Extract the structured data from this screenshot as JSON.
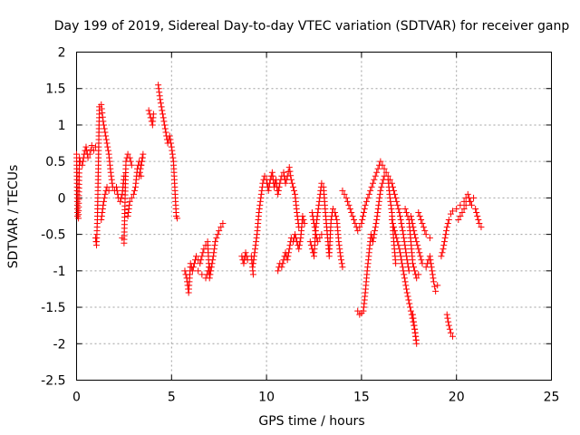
{
  "chart_data": {
    "type": "scatter",
    "title": "Day 199 of 2019, Sidereal Day-to-day VTEC variation (SDTVAR) for receiver ganp",
    "xlabel": "GPS time / hours",
    "ylabel": "SDTVAR / TECUs",
    "xlim": [
      0,
      25
    ],
    "ylim": [
      -2.5,
      2
    ],
    "x_ticks": [
      0,
      5,
      10,
      15,
      20,
      25
    ],
    "y_ticks": [
      2,
      1.5,
      1,
      0.5,
      0,
      -0.5,
      -1,
      -1.5,
      -2,
      -2.5
    ],
    "grid": true,
    "marker": "+",
    "color": "#ff0000",
    "series": [
      {
        "name": "SDTVAR",
        "segments": [
          [
            [
              0.0,
              0.6
            ],
            [
              0.05,
              -0.25
            ],
            [
              0.1,
              -0.28
            ],
            [
              0.15,
              0.55
            ],
            [
              0.2,
              0.5
            ],
            [
              0.3,
              0.45
            ],
            [
              0.4,
              0.6
            ],
            [
              0.5,
              0.7
            ],
            [
              0.6,
              0.55
            ],
            [
              0.7,
              0.6
            ],
            [
              0.8,
              0.72
            ],
            [
              0.9,
              0.65
            ],
            [
              1.0,
              0.7
            ]
          ],
          [
            [
              1.0,
              -0.55
            ],
            [
              1.05,
              -0.65
            ],
            [
              1.1,
              -0.25
            ],
            [
              1.15,
              0.5
            ],
            [
              1.2,
              1.25
            ],
            [
              1.3,
              1.28
            ],
            [
              1.4,
              1.05
            ],
            [
              1.5,
              0.9
            ],
            [
              1.6,
              0.75
            ],
            [
              1.7,
              0.6
            ],
            [
              1.8,
              0.35
            ],
            [
              1.9,
              0.15
            ],
            [
              2.0,
              0.1
            ],
            [
              2.1,
              0.15
            ],
            [
              2.2,
              0.0
            ],
            [
              2.3,
              -0.05
            ],
            [
              2.4,
              0.05
            ],
            [
              2.5,
              0.3
            ]
          ],
          [
            [
              1.3,
              -0.3
            ],
            [
              1.4,
              -0.1
            ],
            [
              1.5,
              0.05
            ],
            [
              1.6,
              0.15
            ],
            [
              1.7,
              0.1
            ]
          ],
          [
            [
              2.4,
              -0.55
            ],
            [
              2.5,
              -0.62
            ],
            [
              2.6,
              0.5
            ],
            [
              2.7,
              0.6
            ],
            [
              2.8,
              0.55
            ],
            [
              2.9,
              0.45
            ]
          ],
          [
            [
              2.7,
              -0.25
            ],
            [
              2.8,
              -0.05
            ],
            [
              2.9,
              0.0
            ],
            [
              3.0,
              0.05
            ],
            [
              3.1,
              0.15
            ],
            [
              3.2,
              0.4
            ],
            [
              3.3,
              0.5
            ],
            [
              3.4,
              0.45
            ],
            [
              3.5,
              0.6
            ],
            [
              3.3,
              0.3
            ],
            [
              3.4,
              0.3
            ]
          ],
          [
            [
              3.8,
              1.2
            ],
            [
              3.9,
              1.1
            ],
            [
              4.0,
              1.0
            ],
            [
              4.05,
              1.15
            ]
          ],
          [
            [
              4.3,
              1.55
            ],
            [
              4.4,
              1.35
            ],
            [
              4.5,
              1.2
            ],
            [
              4.6,
              1.05
            ],
            [
              4.7,
              0.9
            ],
            [
              4.8,
              0.75
            ],
            [
              4.9,
              0.85
            ],
            [
              5.0,
              0.7
            ],
            [
              5.1,
              0.5
            ],
            [
              5.15,
              0.25
            ],
            [
              5.2,
              0.0
            ],
            [
              5.25,
              -0.25
            ],
            [
              5.3,
              -0.28
            ]
          ],
          [
            [
              5.7,
              -1.0
            ],
            [
              5.8,
              -1.1
            ],
            [
              5.9,
              -1.3
            ],
            [
              6.0,
              -0.9
            ],
            [
              6.1,
              -1.0
            ],
            [
              6.3,
              -0.8
            ],
            [
              6.5,
              -0.9
            ],
            [
              6.7,
              -0.7
            ],
            [
              6.9,
              -0.6
            ],
            [
              7.0,
              -1.1
            ],
            [
              7.2,
              -0.8
            ],
            [
              7.3,
              -0.6
            ],
            [
              7.5,
              -0.45
            ],
            [
              7.7,
              -0.35
            ]
          ],
          [
            [
              6.4,
              -1.0
            ],
            [
              6.6,
              -1.05
            ],
            [
              6.8,
              -1.1
            ],
            [
              7.0,
              -0.95
            ]
          ],
          [
            [
              8.7,
              -0.8
            ],
            [
              8.8,
              -0.9
            ],
            [
              8.9,
              -0.75
            ],
            [
              9.0,
              -0.85
            ],
            [
              9.2,
              -0.8
            ],
            [
              9.3,
              -1.05
            ]
          ],
          [
            [
              9.3,
              -0.9
            ],
            [
              9.4,
              -0.7
            ],
            [
              9.5,
              -0.5
            ],
            [
              9.6,
              -0.2
            ],
            [
              9.7,
              0.0
            ],
            [
              9.8,
              0.2
            ],
            [
              9.9,
              0.3
            ],
            [
              10.0,
              0.25
            ],
            [
              10.1,
              0.1
            ],
            [
              10.2,
              0.25
            ],
            [
              10.3,
              0.35
            ],
            [
              10.4,
              0.15
            ],
            [
              10.5,
              0.25
            ],
            [
              10.6,
              0.05
            ],
            [
              10.7,
              0.2
            ],
            [
              10.8,
              0.3
            ],
            [
              10.9,
              0.35
            ],
            [
              11.0,
              0.2
            ],
            [
              11.1,
              0.3
            ],
            [
              11.2,
              0.42
            ],
            [
              11.3,
              0.25
            ],
            [
              11.4,
              0.15
            ],
            [
              11.5,
              0.05
            ],
            [
              11.6,
              -0.2
            ],
            [
              11.7,
              -0.4
            ]
          ],
          [
            [
              10.6,
              -1.0
            ],
            [
              10.7,
              -0.9
            ],
            [
              10.8,
              -0.95
            ],
            [
              10.9,
              -0.85
            ],
            [
              11.0,
              -0.75
            ],
            [
              11.1,
              -0.85
            ],
            [
              11.2,
              -0.7
            ],
            [
              11.3,
              -0.55
            ],
            [
              11.4,
              -0.6
            ],
            [
              11.5,
              -0.5
            ],
            [
              11.6,
              -0.6
            ],
            [
              11.7,
              -0.7
            ],
            [
              11.8,
              -0.55
            ],
            [
              11.9,
              -0.25
            ],
            [
              12.0,
              -0.35
            ]
          ],
          [
            [
              12.3,
              -0.6
            ],
            [
              12.4,
              -0.7
            ],
            [
              12.5,
              -0.8
            ],
            [
              12.6,
              -0.4
            ],
            [
              12.7,
              -0.2
            ],
            [
              12.8,
              0.0
            ],
            [
              12.9,
              0.2
            ],
            [
              13.0,
              0.15
            ],
            [
              13.1,
              -0.2
            ],
            [
              13.2,
              -0.5
            ],
            [
              13.3,
              -0.8
            ],
            [
              13.4,
              -0.3
            ],
            [
              13.5,
              -0.15
            ],
            [
              13.6,
              -0.2
            ],
            [
              13.7,
              -0.3
            ],
            [
              13.8,
              -0.6
            ],
            [
              13.9,
              -0.8
            ],
            [
              14.0,
              -0.95
            ]
          ],
          [
            [
              12.4,
              -0.2
            ],
            [
              12.5,
              -0.35
            ],
            [
              12.6,
              -0.5
            ],
            [
              12.7,
              -0.6
            ],
            [
              12.9,
              -0.5
            ]
          ],
          [
            [
              14.0,
              0.1
            ],
            [
              14.2,
              0.0
            ],
            [
              14.4,
              -0.15
            ],
            [
              14.6,
              -0.3
            ],
            [
              14.8,
              -0.45
            ],
            [
              15.0,
              -0.35
            ],
            [
              15.2,
              -0.1
            ],
            [
              15.4,
              0.05
            ],
            [
              15.6,
              0.2
            ],
            [
              15.8,
              0.35
            ],
            [
              16.0,
              0.5
            ],
            [
              16.2,
              0.4
            ],
            [
              16.4,
              0.3
            ],
            [
              16.6,
              0.2
            ],
            [
              16.8,
              0.0
            ],
            [
              17.0,
              -0.2
            ],
            [
              17.2,
              -0.5
            ],
            [
              17.4,
              -0.85
            ],
            [
              17.5,
              -1.0
            ]
          ],
          [
            [
              14.8,
              -1.55
            ],
            [
              14.9,
              -1.6
            ],
            [
              15.0,
              -1.58
            ],
            [
              15.1,
              -1.55
            ],
            [
              15.2,
              -1.3
            ],
            [
              15.3,
              -1.0
            ],
            [
              15.4,
              -0.75
            ],
            [
              15.5,
              -0.5
            ],
            [
              15.6,
              -0.6
            ],
            [
              15.7,
              -0.45
            ],
            [
              15.8,
              -0.3
            ],
            [
              15.9,
              -0.1
            ],
            [
              16.0,
              0.1
            ],
            [
              16.2,
              0.3
            ],
            [
              16.4,
              0.25
            ],
            [
              16.5,
              0.0
            ],
            [
              16.6,
              -0.2
            ],
            [
              16.7,
              -0.6
            ],
            [
              16.8,
              -0.9
            ]
          ],
          [
            [
              16.6,
              -0.3
            ],
            [
              16.8,
              -0.5
            ],
            [
              17.0,
              -0.7
            ],
            [
              17.2,
              -1.0
            ],
            [
              17.4,
              -1.3
            ],
            [
              17.6,
              -1.55
            ],
            [
              17.8,
              -1.8
            ],
            [
              17.9,
              -2.0
            ],
            [
              17.7,
              -1.6
            ]
          ],
          [
            [
              17.6,
              -0.25
            ],
            [
              17.8,
              -0.5
            ],
            [
              18.0,
              -0.7
            ],
            [
              18.2,
              -0.9
            ],
            [
              18.4,
              -0.95
            ],
            [
              18.6,
              -0.8
            ],
            [
              18.8,
              -1.15
            ],
            [
              18.9,
              -1.28
            ],
            [
              19.0,
              -1.2
            ]
          ],
          [
            [
              17.3,
              -0.15
            ],
            [
              17.5,
              -0.3
            ],
            [
              17.7,
              -0.9
            ],
            [
              17.9,
              -1.1
            ],
            [
              18.0,
              -1.05
            ]
          ],
          [
            [
              18.0,
              -0.2
            ],
            [
              18.2,
              -0.35
            ],
            [
              18.4,
              -0.5
            ],
            [
              18.6,
              -0.55
            ]
          ],
          [
            [
              19.2,
              -0.8
            ],
            [
              19.3,
              -0.7
            ],
            [
              19.4,
              -0.55
            ],
            [
              19.5,
              -0.4
            ],
            [
              19.6,
              -0.3
            ],
            [
              19.7,
              -0.22
            ],
            [
              19.8,
              -0.18
            ],
            [
              20.0,
              -0.15
            ],
            [
              20.2,
              -0.1
            ],
            [
              20.4,
              -0.05
            ],
            [
              20.6,
              0.05
            ],
            [
              20.8,
              -0.1
            ],
            [
              21.0,
              -0.15
            ],
            [
              21.2,
              -0.35
            ],
            [
              21.3,
              -0.4
            ]
          ],
          [
            [
              19.5,
              -1.6
            ],
            [
              19.6,
              -1.75
            ],
            [
              19.7,
              -1.85
            ],
            [
              19.8,
              -1.9
            ]
          ],
          [
            [
              20.1,
              -0.3
            ],
            [
              20.3,
              -0.2
            ],
            [
              20.5,
              -0.1
            ],
            [
              20.7,
              -0.05
            ],
            [
              20.9,
              0.0
            ]
          ]
        ]
      }
    ]
  }
}
